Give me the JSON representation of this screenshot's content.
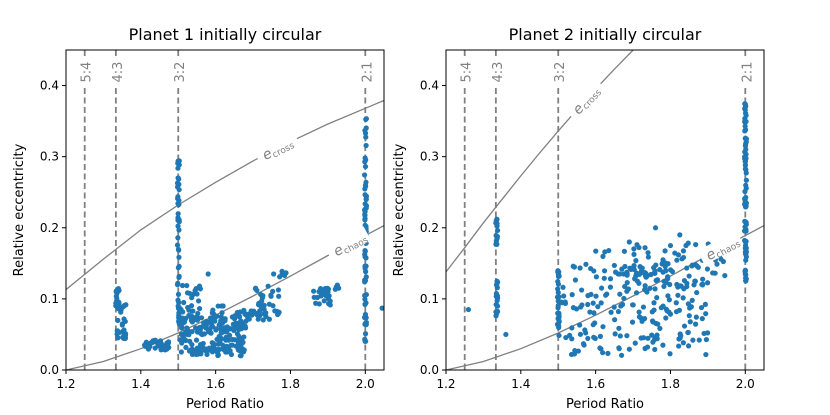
{
  "chart_data": [
    {
      "type": "scatter",
      "title": "Planet 1 initially circular",
      "xlabel": "Period Ratio",
      "ylabel": "Relative eccentricity",
      "xlim": [
        1.2,
        2.05
      ],
      "ylim": [
        0.0,
        0.45
      ],
      "xticks": [
        1.2,
        1.4,
        1.6,
        1.8,
        2.0
      ],
      "xtick_labels": [
        "1.2",
        "1.4",
        "1.6",
        "1.8",
        "2.0"
      ],
      "yticks": [
        0.0,
        0.1,
        0.2,
        0.3,
        0.4
      ],
      "ytick_labels": [
        "0.0",
        "0.1",
        "0.2",
        "0.3",
        "0.4"
      ],
      "grid": false,
      "marker_color": "#1f77b4",
      "resonances": [
        {
          "label": "5:4",
          "x": 1.25
        },
        {
          "label": "4:3",
          "x": 1.3333
        },
        {
          "label": "3:2",
          "x": 1.5
        },
        {
          "label": "2:1",
          "x": 2.0
        }
      ],
      "curves": [
        {
          "name": "e_cross",
          "label_main": "e",
          "label_sub": "cross",
          "color": "#808080",
          "x": [
            1.2,
            1.3,
            1.4,
            1.5,
            1.6,
            1.7,
            1.8,
            1.9,
            2.0,
            2.05
          ],
          "y": [
            0.113,
            0.156,
            0.197,
            0.232,
            0.264,
            0.294,
            0.321,
            0.346,
            0.368,
            0.379
          ]
        },
        {
          "name": "e_chaos",
          "label_main": "e",
          "label_sub": "chaos",
          "color": "#808080",
          "x": [
            1.2,
            1.3,
            1.4,
            1.5,
            1.6,
            1.7,
            1.8,
            1.9,
            2.0,
            2.05
          ],
          "y": [
            0.0,
            0.012,
            0.03,
            0.052,
            0.077,
            0.104,
            0.132,
            0.161,
            0.189,
            0.203
          ]
        }
      ],
      "clusters": [
        {
          "x_min": 1.333,
          "x_max": 1.343,
          "y_min": 0.09,
          "y_max": 0.117,
          "n": 22
        },
        {
          "x_min": 1.336,
          "x_max": 1.36,
          "y_min": 0.042,
          "y_max": 0.095,
          "n": 30
        },
        {
          "x_min": 1.41,
          "x_max": 1.475,
          "y_min": 0.028,
          "y_max": 0.042,
          "n": 40
        },
        {
          "x_min": 1.498,
          "x_max": 1.503,
          "y_min": 0.06,
          "y_max": 0.295,
          "n": 45
        },
        {
          "x_min": 1.5,
          "x_max": 1.56,
          "y_min": 0.05,
          "y_max": 0.12,
          "n": 40
        },
        {
          "x_min": 1.5,
          "x_max": 1.68,
          "y_min": 0.02,
          "y_max": 0.075,
          "n": 170
        },
        {
          "x_min": 1.58,
          "x_max": 1.62,
          "y_min": 0.05,
          "y_max": 0.09,
          "n": 20
        },
        {
          "x_min": 1.65,
          "x_max": 1.69,
          "y_min": 0.06,
          "y_max": 0.085,
          "n": 18
        },
        {
          "x_min": 1.69,
          "x_max": 1.77,
          "y_min": 0.07,
          "y_max": 0.12,
          "n": 40
        },
        {
          "x_min": 1.77,
          "x_max": 1.79,
          "y_min": 0.13,
          "y_max": 0.14,
          "n": 6
        },
        {
          "x_min": 1.86,
          "x_max": 1.91,
          "y_min": 0.09,
          "y_max": 0.115,
          "n": 25
        },
        {
          "x_min": 1.918,
          "x_max": 1.93,
          "y_min": 0.11,
          "y_max": 0.12,
          "n": 4
        },
        {
          "x_min": 1.998,
          "x_max": 2.003,
          "y_min": 0.03,
          "y_max": 0.36,
          "n": 70
        }
      ],
      "points": [
        {
          "x": 1.41,
          "y": 0.035
        },
        {
          "x": 1.58,
          "y": 0.135
        },
        {
          "x": 1.755,
          "y": 0.135
        },
        {
          "x": 2.045,
          "y": 0.087
        },
        {
          "x": 1.695,
          "y": 0.083
        },
        {
          "x": 1.62,
          "y": 0.09
        }
      ]
    },
    {
      "type": "scatter",
      "title": "Planet 2 initially circular",
      "xlabel": "Period Ratio",
      "ylabel": "Relative eccentricity",
      "xlim": [
        1.2,
        2.05
      ],
      "ylim": [
        0.0,
        0.45
      ],
      "xticks": [
        1.2,
        1.4,
        1.6,
        1.8,
        2.0
      ],
      "xtick_labels": [
        "1.2",
        "1.4",
        "1.6",
        "1.8",
        "2.0"
      ],
      "yticks": [
        0.0,
        0.1,
        0.2,
        0.3,
        0.4
      ],
      "ytick_labels": [
        "0.0",
        "0.1",
        "0.2",
        "0.3",
        "0.4"
      ],
      "grid": false,
      "marker_color": "#1f77b4",
      "resonances": [
        {
          "label": "5:4",
          "x": 1.25
        },
        {
          "label": "4:3",
          "x": 1.3333
        },
        {
          "label": "3:2",
          "x": 1.5
        },
        {
          "label": "2:1",
          "x": 2.0
        }
      ],
      "curves": [
        {
          "name": "e_cross",
          "label_main": "e",
          "label_sub": "cross",
          "color": "#808080",
          "x": [
            1.2,
            1.25,
            1.3,
            1.35,
            1.4,
            1.45,
            1.5,
            1.55,
            1.6,
            1.65,
            1.7,
            1.75
          ],
          "y": [
            0.138,
            0.172,
            0.207,
            0.24,
            0.273,
            0.305,
            0.336,
            0.366,
            0.395,
            0.423,
            0.45,
            0.476
          ]
        },
        {
          "name": "e_chaos",
          "label_main": "e",
          "label_sub": "chaos",
          "color": "#808080",
          "x": [
            1.2,
            1.3,
            1.4,
            1.5,
            1.6,
            1.7,
            1.8,
            1.9,
            2.0,
            2.05
          ],
          "y": [
            0.0,
            0.012,
            0.03,
            0.052,
            0.077,
            0.104,
            0.132,
            0.161,
            0.189,
            0.203
          ]
        }
      ],
      "clusters": [
        {
          "x_min": 1.333,
          "x_max": 1.338,
          "y_min": 0.17,
          "y_max": 0.215,
          "n": 15
        },
        {
          "x_min": 1.333,
          "x_max": 1.338,
          "y_min": 0.09,
          "y_max": 0.125,
          "n": 12
        },
        {
          "x_min": 1.333,
          "x_max": 1.338,
          "y_min": 0.075,
          "y_max": 0.095,
          "n": 5
        },
        {
          "x_min": 1.498,
          "x_max": 1.503,
          "y_min": 0.06,
          "y_max": 0.14,
          "n": 25
        },
        {
          "x_min": 1.5,
          "x_max": 1.9,
          "y_min": 0.02,
          "y_max": 0.15,
          "n": 200
        },
        {
          "x_min": 1.7,
          "x_max": 1.95,
          "y_min": 0.12,
          "y_max": 0.18,
          "n": 70
        },
        {
          "x_min": 1.6,
          "x_max": 1.72,
          "y_min": 0.11,
          "y_max": 0.17,
          "n": 20
        },
        {
          "x_min": 1.998,
          "x_max": 2.003,
          "y_min": 0.125,
          "y_max": 0.375,
          "n": 80
        }
      ],
      "points": [
        {
          "x": 1.26,
          "y": 0.085
        },
        {
          "x": 1.74,
          "y": 0.165
        },
        {
          "x": 1.8,
          "y": 0.175
        },
        {
          "x": 1.69,
          "y": 0.18
        },
        {
          "x": 1.76,
          "y": 0.2
        },
        {
          "x": 1.825,
          "y": 0.19
        },
        {
          "x": 1.36,
          "y": 0.05
        }
      ]
    }
  ]
}
